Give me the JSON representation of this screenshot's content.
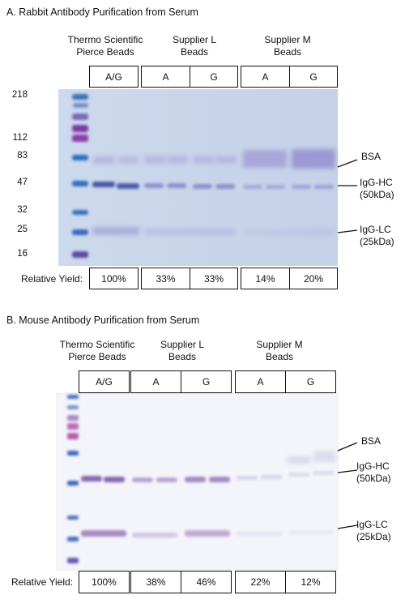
{
  "panels": [
    {
      "title": "A. Rabbit Antibody Purification from Serum",
      "groups": [
        {
          "line1": "Thermo Scientific",
          "line2": "Pierce Beads"
        },
        {
          "line1": "Supplier L",
          "line2": "Beads"
        },
        {
          "line1": "Supplier M",
          "line2": "Beads"
        }
      ],
      "lanes": [
        "A/G",
        "A",
        "G",
        "A",
        "G"
      ],
      "mw_markers": [
        "218",
        "112",
        "83",
        "47",
        "32",
        "25",
        "16"
      ],
      "band_labels": [
        {
          "l1": "BSA",
          "l2": ""
        },
        {
          "l1": "IgG-HC",
          "l2": "(50kDa)"
        },
        {
          "l1": "IgG-LC",
          "l2": "(25kDa)"
        }
      ],
      "yield_label": "Relative Yield:",
      "yields": [
        "100%",
        "33%",
        "33%",
        "14%",
        "20%"
      ]
    },
    {
      "title": "B. Mouse Antibody Purification from Serum",
      "groups": [
        {
          "line1": "Thermo Scientific",
          "line2": "Pierce Beads"
        },
        {
          "line1": "Supplier L",
          "line2": "Beads"
        },
        {
          "line1": "Supplier M",
          "line2": "Beads"
        }
      ],
      "lanes": [
        "A/G",
        "A",
        "G",
        "A",
        "G"
      ],
      "band_labels": [
        {
          "l1": "BSA",
          "l2": ""
        },
        {
          "l1": "IgG-HC",
          "l2": "(50kDa)"
        },
        {
          "l1": "IgG-LC",
          "l2": "(25kDa)"
        }
      ],
      "yield_label": "Relative Yield:",
      "yields": [
        "100%",
        "38%",
        "46%",
        "22%",
        "12%"
      ]
    }
  ],
  "colors": {
    "gel_a": "#c9d7ea",
    "gel_b": "#f4f5fa",
    "ladder_blue": "#2f6fc0",
    "ladder_purple": "#7a3aa8",
    "band_purple": "#7d5fae"
  }
}
